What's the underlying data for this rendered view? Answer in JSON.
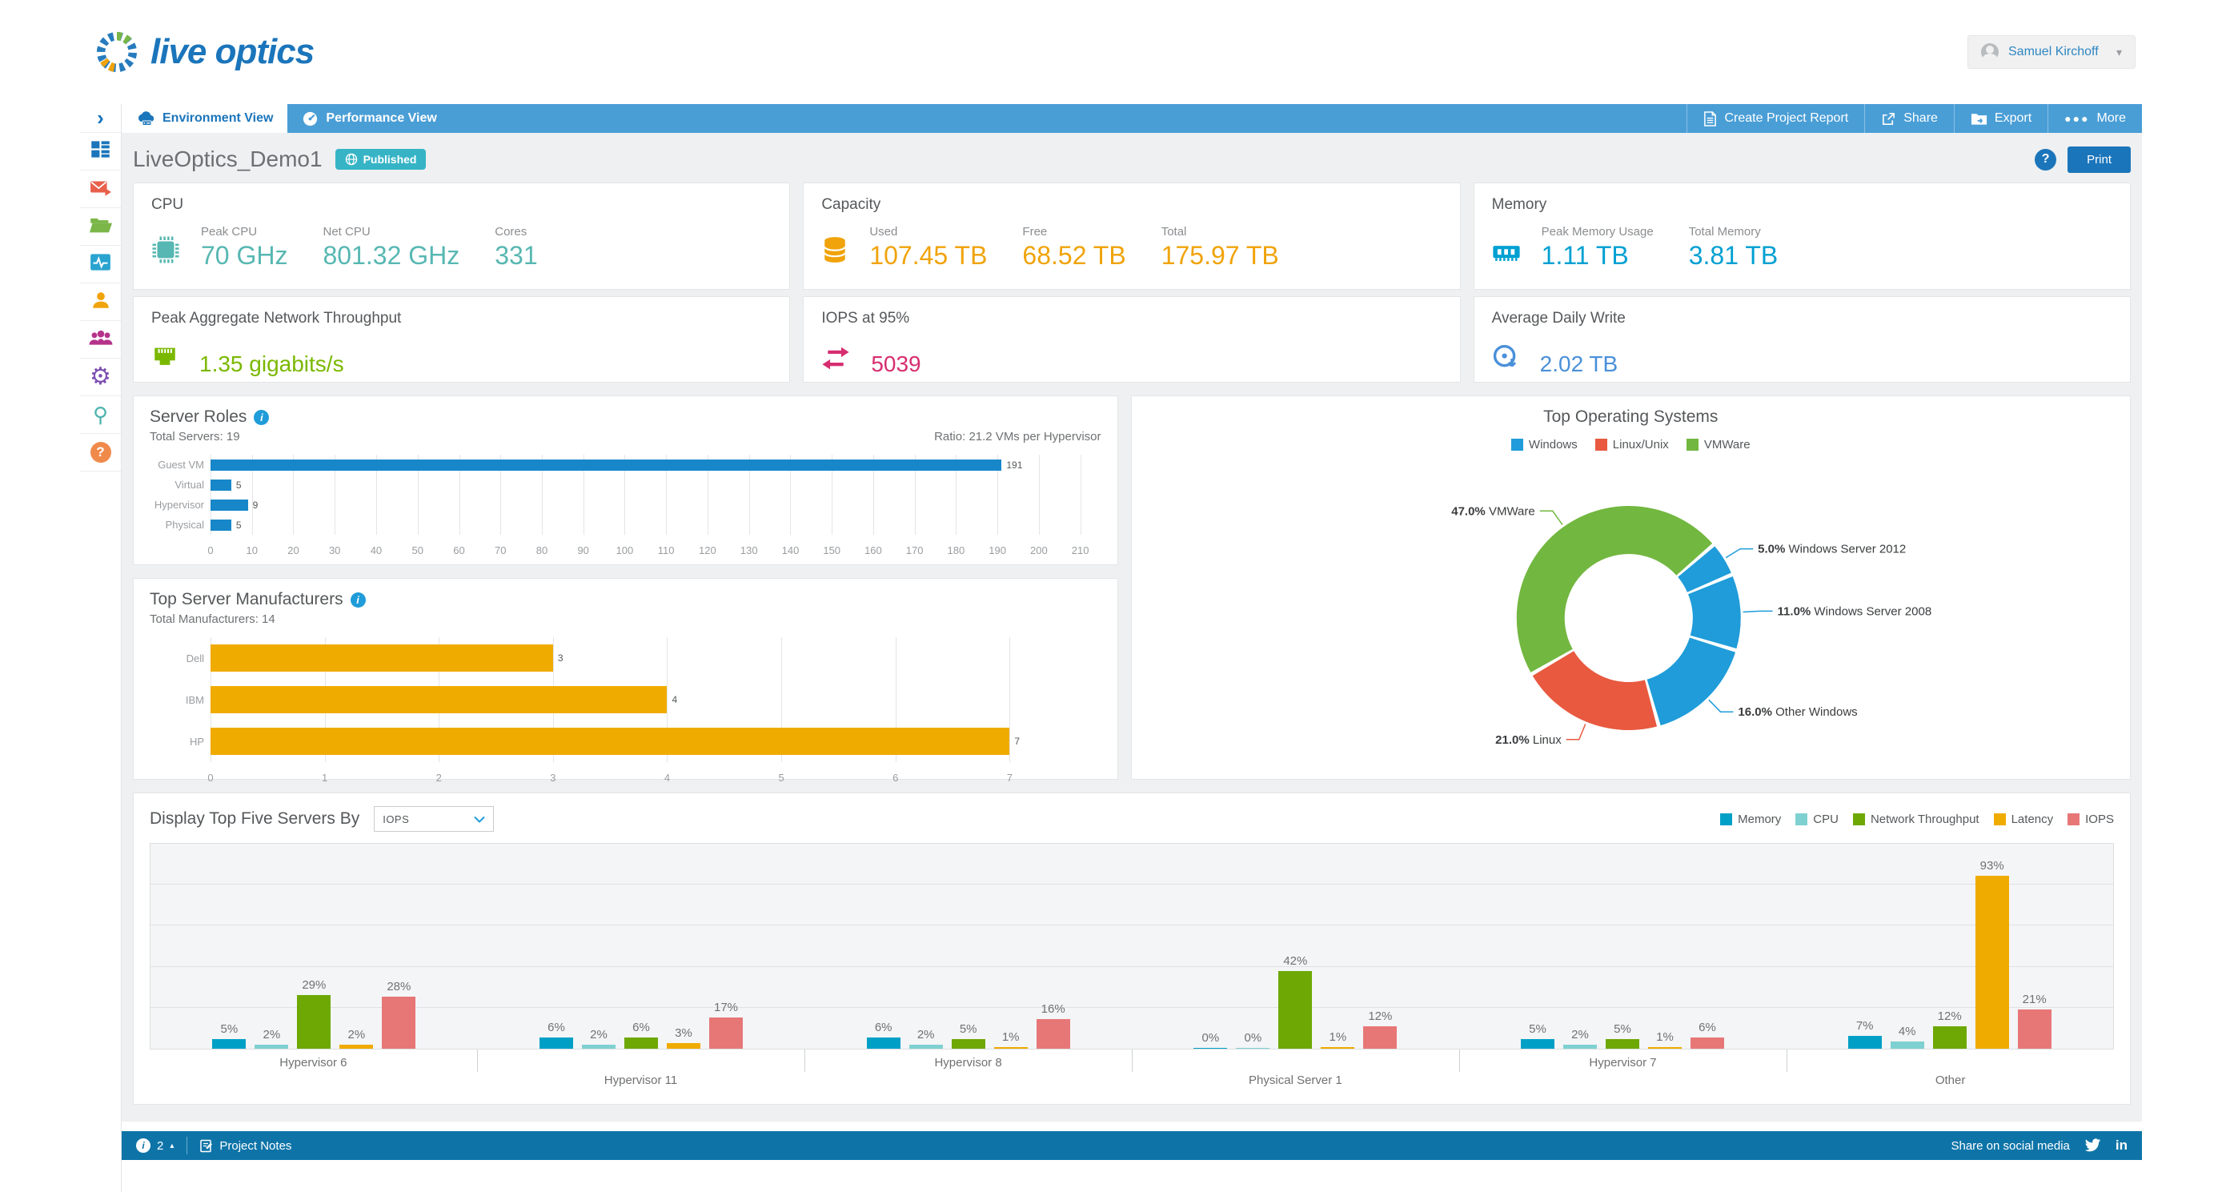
{
  "header": {
    "logo_text": "live optics",
    "user_name": "Samuel Kirchoff"
  },
  "tab_bar": {
    "tabs": [
      {
        "label": "Environment View",
        "icon": "cloud-server-icon",
        "active": true
      },
      {
        "label": "Performance View",
        "icon": "gauge-icon",
        "active": false
      }
    ],
    "actions": [
      {
        "label": "Create Project Report",
        "icon": "report-document-icon"
      },
      {
        "label": "Share",
        "icon": "share-icon"
      },
      {
        "label": "Export",
        "icon": "export-folder-icon"
      },
      {
        "label": "More",
        "icon": "more-dots-icon"
      }
    ]
  },
  "title_bar": {
    "project_name": "LiveOptics_Demo1",
    "status_badge": "Published",
    "print_label": "Print",
    "help_label": "?"
  },
  "sidebar": {
    "items": [
      {
        "name": "expand-chevron-icon",
        "color": "#1b75bb"
      },
      {
        "name": "dashboard-icon",
        "color": "#1b75bb"
      },
      {
        "name": "email-share-icon",
        "color": "#e8604c"
      },
      {
        "name": "projects-folder-icon",
        "color": "#7ab648"
      },
      {
        "name": "activity-monitor-icon",
        "color": "#29a3d0"
      },
      {
        "name": "user-icon",
        "color": "#f0a30a"
      },
      {
        "name": "team-icon",
        "color": "#b5338a"
      },
      {
        "name": "settings-gear-icon",
        "color": "#7d4fb3"
      },
      {
        "name": "tools-icon",
        "color": "#4fb3ae"
      },
      {
        "name": "help-icon",
        "color": "#f08a4b"
      }
    ]
  },
  "stat_cards": {
    "row1": [
      {
        "title": "CPU",
        "icon": "cpu-chip-icon",
        "color": "#57b7b2",
        "data_name": "cpu-card",
        "metrics": [
          {
            "label": "Peak CPU",
            "value": "70 GHz"
          },
          {
            "label": "Net CPU",
            "value": "801.32 GHz"
          },
          {
            "label": "Cores",
            "value": "331"
          }
        ]
      },
      {
        "title": "Capacity",
        "icon": "database-icon",
        "color": "#f0a30a",
        "data_name": "capacity-card",
        "metrics": [
          {
            "label": "Used",
            "value": "107.45 TB"
          },
          {
            "label": "Free",
            "value": "68.52 TB"
          },
          {
            "label": "Total",
            "value": "175.97 TB"
          }
        ]
      },
      {
        "title": "Memory",
        "icon": "ram-icon",
        "color": "#00a0d2",
        "data_name": "memory-card",
        "metrics": [
          {
            "label": "Peak Memory Usage",
            "value": "1.11 TB"
          },
          {
            "label": "Total Memory",
            "value": "3.81 TB"
          }
        ]
      }
    ],
    "row2": [
      {
        "title": "Peak Aggregate Network Throughput",
        "icon": "ethernet-icon",
        "color": "#7ab800",
        "data_name": "network-throughput-card",
        "metrics": [
          {
            "label": "",
            "value": "1.35 gigabits/s"
          }
        ]
      },
      {
        "title": "IOPS at 95%",
        "icon": "sync-arrows-icon",
        "color": "#d62e70",
        "data_name": "iops-card",
        "metrics": [
          {
            "label": "",
            "value": "5039"
          }
        ]
      },
      {
        "title": "Average Daily Write",
        "icon": "disc-write-icon",
        "color": "#4a90d9",
        "data_name": "daily-write-card",
        "metrics": [
          {
            "label": "",
            "value": "2.02 TB"
          }
        ]
      }
    ]
  },
  "chart_data": [
    {
      "type": "bar",
      "orientation": "horizontal",
      "title": "Server Roles",
      "subtitle_left": "Total Servers: 19",
      "subtitle_right": "Ratio: 21.2 VMs per Hypervisor",
      "categories": [
        "Guest VM",
        "Virtual",
        "Hypervisor",
        "Physical"
      ],
      "values": [
        191,
        5,
        9,
        5
      ],
      "bar_color": "#1787c9",
      "xticks": [
        0,
        10,
        20,
        30,
        40,
        50,
        60,
        70,
        80,
        90,
        100,
        110,
        120,
        130,
        140,
        150,
        160,
        170,
        180,
        190,
        200,
        210
      ],
      "xmax": 215,
      "grid": true,
      "legend_position": "none"
    },
    {
      "type": "bar",
      "orientation": "horizontal",
      "title": "Top Server Manufacturers",
      "subtitle_left": "Total Manufacturers: 14",
      "categories": [
        "Dell",
        "IBM",
        "HP"
      ],
      "values": [
        3,
        4,
        7
      ],
      "bar_color": "#f0ab00",
      "xticks": [
        0,
        1,
        2,
        3,
        4,
        5,
        6,
        7
      ],
      "xmax": 7.8,
      "grid": true,
      "legend_position": "none"
    },
    {
      "type": "pie",
      "title": "Top Operating Systems",
      "legend": [
        {
          "label": "Windows",
          "color": "#1f9cd9"
        },
        {
          "label": "Linux/Unix",
          "color": "#e8593f"
        },
        {
          "label": "VMWare",
          "color": "#72b740"
        }
      ],
      "start_angle": 240,
      "slices": [
        {
          "label": "VMWare",
          "pct": 47.0,
          "display": "47.0%",
          "color": "#72b740"
        },
        {
          "label": "Windows Server 2012",
          "pct": 5.0,
          "display": "5.0%",
          "color": "#1f9cd9"
        },
        {
          "label": "Windows Server 2008",
          "pct": 11.0,
          "display": "11.0%",
          "color": "#1f9cd9"
        },
        {
          "label": "Other Windows",
          "pct": 16.0,
          "display": "16.0%",
          "color": "#1f9cd9"
        },
        {
          "label": "Linux",
          "pct": 21.0,
          "display": "21.0%",
          "color": "#e8593f"
        }
      ],
      "legend_position": "top"
    },
    {
      "type": "bar",
      "grouped": true,
      "title": "Display Top Five Servers By",
      "dropdown_value": "IOPS",
      "categories": [
        "Hypervisor 6",
        "Hypervisor 11",
        "Hypervisor 8",
        "Physical Server 1",
        "Hypervisor 7",
        "Other"
      ],
      "series": [
        {
          "name": "Memory",
          "color": "#00a0c6",
          "values": [
            5,
            6,
            6,
            0,
            5,
            7
          ]
        },
        {
          "name": "CPU",
          "color": "#7fd1d1",
          "values": [
            2,
            2,
            2,
            0,
            2,
            4
          ]
        },
        {
          "name": "Network Throughput",
          "color": "#6da804",
          "values": [
            29,
            6,
            5,
            42,
            5,
            12
          ]
        },
        {
          "name": "Latency",
          "color": "#f0ab00",
          "values": [
            2,
            3,
            1,
            1,
            1,
            93
          ]
        },
        {
          "name": "IOPS",
          "color": "#e77777",
          "values": [
            28,
            17,
            16,
            12,
            6,
            21
          ]
        }
      ],
      "value_suffix": "%",
      "ylim": [
        0,
        100
      ],
      "grid_percent": [
        20,
        40,
        60,
        80
      ],
      "legend_position": "top-right"
    }
  ],
  "footer": {
    "notification_count": "2",
    "project_notes_label": "Project Notes",
    "share_label": "Share on social media",
    "linkedin_label": "in"
  },
  "colors": {
    "accent_blue": "#1b75bb",
    "tab_bar_blue": "#4a9ed6",
    "footer_blue": "#0e74a8",
    "badge_teal": "#36b4c6",
    "page_bg": "#eef0f1"
  }
}
